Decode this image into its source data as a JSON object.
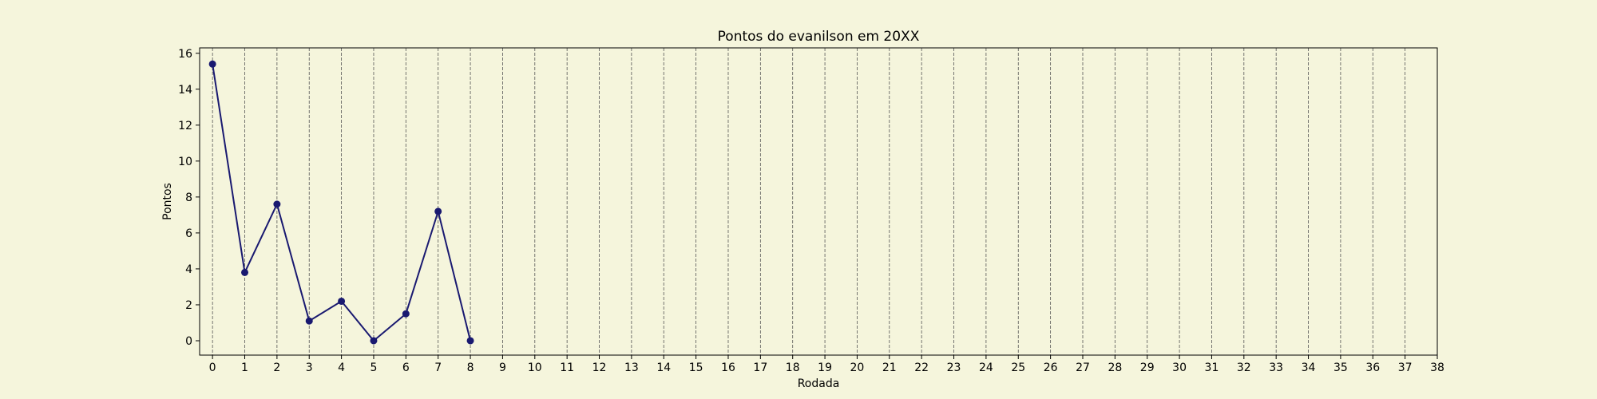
{
  "chart_data": {
    "type": "line",
    "title": "Pontos do evanilson em 20XX",
    "xlabel": "Rodada",
    "ylabel": "Pontos",
    "x": [
      0,
      1,
      2,
      3,
      4,
      5,
      6,
      7,
      8
    ],
    "series": [
      {
        "values": [
          15.4,
          3.8,
          7.6,
          1.1,
          2.2,
          0.0,
          1.5,
          7.2,
          0.0
        ]
      }
    ],
    "xlim": [
      -0.4,
      38
    ],
    "ylim": [
      -0.8,
      16.3
    ],
    "xticks": [
      0,
      1,
      2,
      3,
      4,
      5,
      6,
      7,
      8,
      9,
      10,
      11,
      12,
      13,
      14,
      15,
      16,
      17,
      18,
      19,
      20,
      21,
      22,
      23,
      24,
      25,
      26,
      27,
      28,
      29,
      30,
      31,
      32,
      33,
      34,
      35,
      36,
      37,
      38
    ],
    "yticks": [
      0,
      2,
      4,
      6,
      8,
      10,
      12,
      14,
      16
    ],
    "grid": "x-dashed",
    "colors": {
      "line": "#191970",
      "marker": "#191970",
      "background": "#f5f5dc",
      "grid": "#555555"
    }
  }
}
